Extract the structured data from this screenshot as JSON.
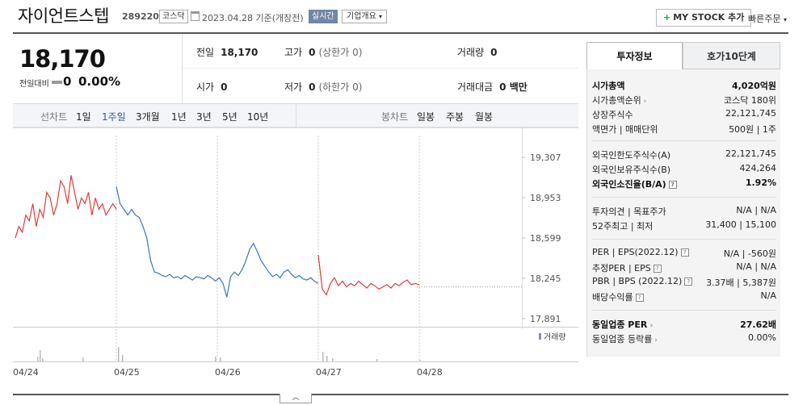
{
  "header": {
    "stock_name": "자이언트스텝",
    "stock_code": "289220",
    "market": "코스닥",
    "date_text": "2023.04.28 기준(개장전)",
    "realtime_badge": "실시간",
    "company_info_label": "기업개요",
    "mystock_label": "MY STOCK 추가",
    "quick_order_label": "빠른주문"
  },
  "price": {
    "current": "18,170",
    "change_label": "전일대비",
    "change_value": "0",
    "change_percent": "0.00%"
  },
  "summary": {
    "prev_close": {
      "label": "전일",
      "value": "18,170"
    },
    "high": {
      "label": "고가",
      "value": "0",
      "sub": "(상한가 0)"
    },
    "volume": {
      "label": "거래량",
      "value": "0"
    },
    "open": {
      "label": "시가",
      "value": "0"
    },
    "low": {
      "label": "저가",
      "value": "0",
      "sub": "(하한가 0)"
    },
    "turnover": {
      "label": "거래대금",
      "value": "0 백만"
    }
  },
  "period_bar": {
    "line_chart_label": "선차트",
    "periods": [
      "1일",
      "1주일",
      "3개월",
      "1년",
      "3년",
      "5년",
      "10년"
    ],
    "active_period": "1주일",
    "candle_chart_label": "봉차트",
    "candle_periods": [
      "일봉",
      "주봉",
      "월봉"
    ]
  },
  "chart_data": {
    "type": "line",
    "y_ticks": [
      "19,307",
      "18,953",
      "18,599",
      "18,245",
      "17,891"
    ],
    "ylim": [
      17891,
      19307
    ],
    "x_ticks": [
      "04/24",
      "04/25",
      "04/26",
      "04/27",
      "04/28"
    ],
    "volume_label": "거래량",
    "reference_price": 18170,
    "series": [
      {
        "color": "#e23b3b",
        "segment": "04/24",
        "values": [
          18600,
          18700,
          18650,
          18800,
          18750,
          18900,
          18700,
          18850,
          18780,
          19000,
          18950,
          18800,
          18900,
          19100,
          19050,
          18900,
          19150,
          19000,
          18850,
          18950,
          18900,
          19000,
          18800,
          18950,
          18850,
          18900,
          18800,
          18850,
          18900,
          18850
        ]
      },
      {
        "color": "#3a74c8",
        "segment": "04/25-04/26",
        "values": [
          19050,
          18900,
          18850,
          18800,
          18850,
          18800,
          18780,
          18700,
          18600,
          18400,
          18300,
          18290,
          18270,
          18260,
          18280,
          18250,
          18260,
          18240,
          18270,
          18250,
          18230,
          18260,
          18250,
          18240,
          18270,
          18250,
          18220,
          18250,
          18200,
          18080,
          18260,
          18300,
          18270,
          18320,
          18400,
          18500,
          18550,
          18480,
          18400,
          18350,
          18300,
          18260,
          18280,
          18250,
          18300,
          18320,
          18280,
          18250,
          18270,
          18240,
          18230,
          18250,
          18220,
          18200
        ]
      },
      {
        "color": "#e23b3b",
        "segment": "04/27",
        "values": [
          18450,
          18150,
          18100,
          18200,
          18250,
          18180,
          18220,
          18170,
          18200,
          18180,
          18220,
          18190,
          18160,
          18200,
          18180,
          18150,
          18170,
          18190,
          18160,
          18200,
          18180,
          18210,
          18230,
          18190,
          18200,
          18190
        ]
      }
    ]
  },
  "side_panel": {
    "tabs": [
      "투자정보",
      "호가10단계"
    ],
    "rows": [
      {
        "k": "시가총액",
        "v": "4,020억원",
        "bold": true
      },
      {
        "k": "시가총액순위",
        "v": "코스닥 180위",
        "arrow": true
      },
      {
        "k": "상장주식수",
        "v": "22,121,745"
      },
      {
        "k": "액면가 | 매매단위",
        "v": "500원 | 1주"
      },
      {
        "k": "외국인한도주식수(A)",
        "v": "22,121,745"
      },
      {
        "k": "외국인보유주식수(B)",
        "v": "424,264"
      },
      {
        "k": "외국인소진율(B/A)",
        "v": "1.92%",
        "bold": true,
        "q": true
      },
      {
        "k": "투자의견 | 목표주가",
        "v": "N/A | N/A"
      },
      {
        "k": "52주최고 | 최저",
        "v": "31,400 | 15,100"
      },
      {
        "k": "PER | EPS(2022.12)",
        "v": "N/A | -560원",
        "q": true
      },
      {
        "k": "추정PER | EPS",
        "v": "N/A | N/A",
        "q": true
      },
      {
        "k": "PBR | BPS (2022.12)",
        "v": "3.37배 | 5,387원",
        "q": true
      },
      {
        "k": "배당수익률",
        "v": "N/A",
        "q": true
      },
      {
        "k": "동일업종 PER",
        "v": "27.62배",
        "bold": true,
        "arrow": true
      },
      {
        "k": "동일업종 등락률",
        "v": "0.00%",
        "arrow": true
      }
    ]
  },
  "colors": {
    "up": "#e23b3b",
    "down": "#3a74c8",
    "active_period": "#3358b8",
    "realtime_badge": "#6f86a8"
  }
}
